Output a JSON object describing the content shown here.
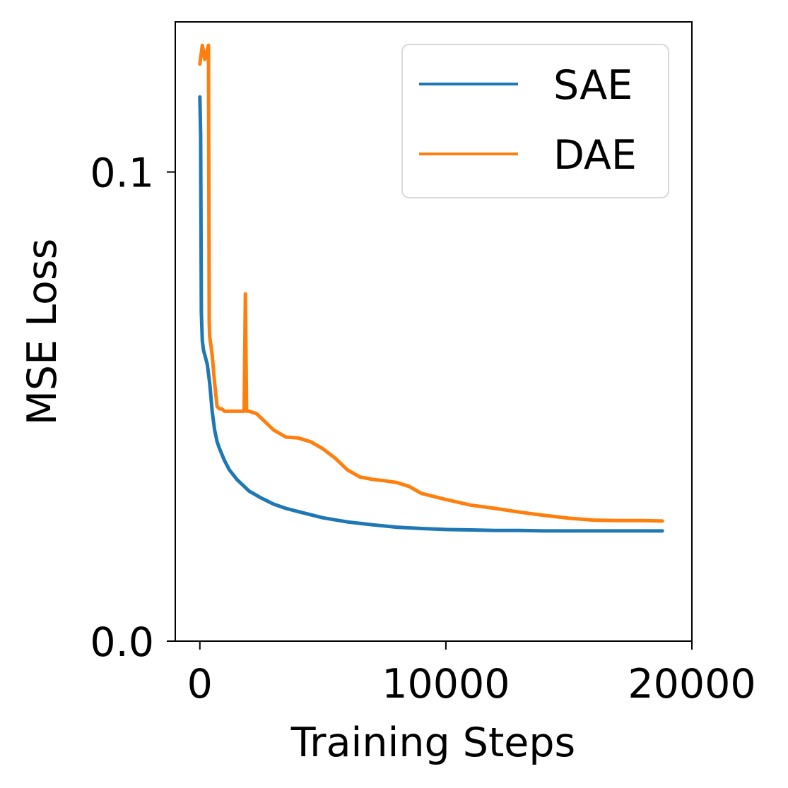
{
  "chart_data": {
    "type": "line",
    "xlabel": "Training Steps",
    "ylabel": "MSE Loss",
    "xlim": [
      -1000,
      20000
    ],
    "ylim": [
      0.0,
      0.132
    ],
    "xticks": [
      0,
      10000,
      20000
    ],
    "xtick_labels": [
      "0",
      "10000",
      "20000"
    ],
    "yticks": [
      0.0,
      0.1
    ],
    "ytick_labels": [
      "0.0",
      "0.1"
    ],
    "grid": false,
    "legend_position": "top-right",
    "series": [
      {
        "name": "SAE",
        "color": "#1f77b4",
        "x": [
          0,
          30,
          60,
          100,
          150,
          200,
          300,
          350,
          400,
          450,
          500,
          600,
          700,
          800,
          1000,
          1200,
          1500,
          2000,
          2500,
          3000,
          3500,
          4000,
          5000,
          6000,
          7000,
          8000,
          9000,
          10000,
          11000,
          12000,
          13000,
          14000,
          15000,
          16000,
          17000,
          18000,
          18800
        ],
        "values": [
          0.116,
          0.108,
          0.07,
          0.064,
          0.062,
          0.061,
          0.059,
          0.057,
          0.055,
          0.052,
          0.049,
          0.045,
          0.0425,
          0.041,
          0.0385,
          0.0365,
          0.0345,
          0.032,
          0.0305,
          0.0292,
          0.0283,
          0.0276,
          0.0263,
          0.0254,
          0.0248,
          0.0243,
          0.024,
          0.0238,
          0.0237,
          0.0236,
          0.0236,
          0.0235,
          0.0235,
          0.0235,
          0.0235,
          0.0235,
          0.0235
        ]
      },
      {
        "name": "DAE",
        "color": "#ff7f0e",
        "x": [
          0,
          100,
          200,
          300,
          350,
          380,
          400,
          500,
          600,
          700,
          800,
          900,
          1000,
          1200,
          1500,
          1800,
          1850,
          1900,
          2000,
          2300,
          2600,
          3000,
          3500,
          4000,
          4500,
          5000,
          5500,
          6000,
          6500,
          7000,
          7500,
          8000,
          8500,
          9000,
          10000,
          11000,
          12000,
          13000,
          14000,
          15000,
          16000,
          17000,
          18000,
          18800
        ],
        "values": [
          0.123,
          0.127,
          0.124,
          0.126,
          0.127,
          0.068,
          0.065,
          0.061,
          0.055,
          0.05,
          0.0495,
          0.0495,
          0.049,
          0.049,
          0.049,
          0.049,
          0.074,
          0.049,
          0.049,
          0.0485,
          0.047,
          0.045,
          0.0435,
          0.0433,
          0.0425,
          0.041,
          0.039,
          0.0365,
          0.035,
          0.0345,
          0.0342,
          0.0338,
          0.033,
          0.0315,
          0.0302,
          0.029,
          0.0283,
          0.0275,
          0.0268,
          0.0262,
          0.0258,
          0.0257,
          0.0257,
          0.0256
        ]
      }
    ]
  }
}
